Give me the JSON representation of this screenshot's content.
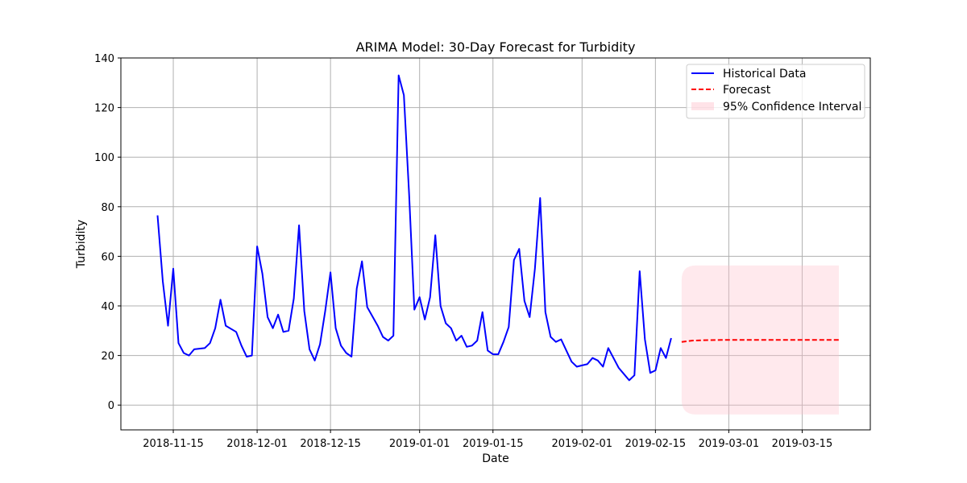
{
  "chart_data": {
    "type": "line",
    "title": "ARIMA Model: 30-Day Forecast for Turbidity",
    "xlabel": "Date",
    "ylabel": "Turbidity",
    "xlim": [
      "2018-11-05",
      "2019-03-28"
    ],
    "ylim": [
      -10,
      140
    ],
    "x_ticks": [
      "2018-11-15",
      "2018-12-01",
      "2018-12-15",
      "2019-01-01",
      "2019-01-15",
      "2019-02-01",
      "2019-02-15",
      "2019-03-01",
      "2019-03-15"
    ],
    "y_ticks": [
      0,
      20,
      40,
      60,
      80,
      100,
      120,
      140
    ],
    "grid": true,
    "legend_position": "top-right",
    "series": [
      {
        "name": "Historical Data",
        "style": "solid",
        "color": "#0000ff",
        "x": [
          "2018-11-12",
          "2018-11-13",
          "2018-11-14",
          "2018-11-15",
          "2018-11-16",
          "2018-11-17",
          "2018-11-18",
          "2018-11-19",
          "2018-11-21",
          "2018-11-22",
          "2018-11-23",
          "2018-11-24",
          "2018-11-25",
          "2018-11-27",
          "2018-11-28",
          "2018-11-29",
          "2018-11-30",
          "2018-12-01",
          "2018-12-02",
          "2018-12-03",
          "2018-12-04",
          "2018-12-05",
          "2018-12-06",
          "2018-12-07",
          "2018-12-08",
          "2018-12-09",
          "2018-12-10",
          "2018-12-11",
          "2018-12-12",
          "2018-12-13",
          "2018-12-14",
          "2018-12-15",
          "2018-12-16",
          "2018-12-17",
          "2018-12-18",
          "2018-12-19",
          "2018-12-20",
          "2018-12-21",
          "2018-12-22",
          "2018-12-24",
          "2018-12-25",
          "2018-12-26",
          "2018-12-27",
          "2018-12-28",
          "2018-12-29",
          "2018-12-30",
          "2018-12-31",
          "2019-01-01",
          "2019-01-02",
          "2019-01-03",
          "2019-01-04",
          "2019-01-05",
          "2019-01-06",
          "2019-01-07",
          "2019-01-08",
          "2019-01-09",
          "2019-01-10",
          "2019-01-11",
          "2019-01-12",
          "2019-01-13",
          "2019-01-14",
          "2019-01-15",
          "2019-01-16",
          "2019-01-17",
          "2019-01-18",
          "2019-01-19",
          "2019-01-20",
          "2019-01-21",
          "2019-01-22",
          "2019-01-23",
          "2019-01-24",
          "2019-01-25",
          "2019-01-26",
          "2019-01-27",
          "2019-01-28",
          "2019-01-30",
          "2019-01-31",
          "2019-02-01",
          "2019-02-02",
          "2019-02-03",
          "2019-02-04",
          "2019-02-05",
          "2019-02-06",
          "2019-02-08",
          "2019-02-09",
          "2019-02-10",
          "2019-02-11",
          "2019-02-12",
          "2019-02-13",
          "2019-02-14",
          "2019-02-15",
          "2019-02-16",
          "2019-02-17",
          "2019-02-18"
        ],
        "values": [
          76.5,
          50,
          32,
          55,
          25,
          21,
          20,
          22.5,
          23,
          25,
          31,
          42.5,
          32,
          29.5,
          24,
          19.5,
          20,
          64,
          53,
          35.5,
          31,
          36.5,
          29.5,
          30,
          43,
          72.5,
          38,
          22.5,
          18,
          24.5,
          38,
          53.5,
          31,
          24,
          21,
          19.5,
          47,
          58,
          39.5,
          32,
          27.5,
          26,
          28,
          133,
          125,
          85,
          38.5,
          43.5,
          34.5,
          43.5,
          68.5,
          40,
          33,
          31,
          26,
          28,
          23.5,
          24,
          26,
          37.5,
          22,
          20.5,
          20.5,
          25.5,
          31.5,
          58.5,
          63,
          42,
          35.5,
          55,
          83.5,
          37.5,
          27.5,
          25.5,
          26.5,
          17.5,
          15.5,
          16,
          16.5,
          19,
          18,
          15.5,
          23,
          15,
          12.5,
          10,
          12,
          54,
          26.5,
          13,
          14,
          23,
          19,
          27
        ]
      },
      {
        "name": "Forecast",
        "style": "dashed",
        "color": "#ff0000",
        "x": [
          "2019-02-20",
          "2019-02-22",
          "2019-02-25",
          "2019-03-01",
          "2019-03-05",
          "2019-03-10",
          "2019-03-15",
          "2019-03-20",
          "2019-03-22"
        ],
        "values": [
          25.5,
          26,
          26.2,
          26.3,
          26.3,
          26.3,
          26.3,
          26.3,
          26.3
        ]
      }
    ],
    "confidence_interval": {
      "name": "95% Confidence Interval",
      "color": "#ffc0cb",
      "x_start": "2019-02-20",
      "x_end": "2019-03-22",
      "lower": -3.8,
      "upper": 56.3
    }
  }
}
